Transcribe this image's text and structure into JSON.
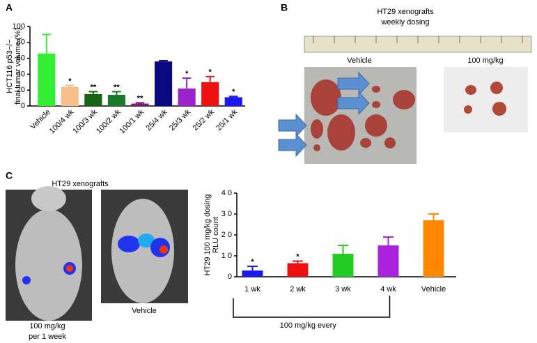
{
  "chart_data": [
    {
      "type": "bar",
      "panel": "A",
      "ylabel": [
        "HCT116 p53−/−",
        "final tumor volume (%)"
      ],
      "categories": [
        "Vehicle",
        "100/4 wk",
        "100/3 wk",
        "100/2 wk",
        "100/1 wk",
        "25/4 wk",
        "25/3 wk",
        "25/2 wk",
        "25/1 wk"
      ],
      "values": [
        66,
        24,
        15,
        14,
        3,
        56,
        22,
        30,
        11
      ],
      "errors": [
        24,
        2,
        3,
        4,
        1,
        1,
        13,
        7,
        1
      ],
      "colors": [
        "#33ee33",
        "#f4bf88",
        "#146414",
        "#1a7a2a",
        "#7a1a7a",
        "#0a0a80",
        "#9a22c8",
        "#ee1111",
        "#1a1aee"
      ],
      "significance": [
        null,
        "*",
        "**",
        "**",
        "**",
        null,
        "*",
        "*",
        "*"
      ],
      "ylim": [
        0,
        100
      ],
      "yticks": [
        0,
        20,
        40,
        60,
        80,
        100
      ]
    },
    {
      "type": "bar",
      "panel": "C",
      "ylabel": [
        "HT29 100 mg/kg dosing",
        "RLU count"
      ],
      "categories": [
        "1 wk",
        "2 wk",
        "3 wk",
        "4 wk",
        "Vehicle"
      ],
      "values": [
        3,
        6.5,
        11,
        15,
        27
      ],
      "errors": [
        2,
        1,
        4,
        4,
        3
      ],
      "colors": [
        "#1a1aee",
        "#ee1111",
        "#22cc22",
        "#aa22dd",
        "#ff8800"
      ],
      "significance": [
        "*",
        "*",
        null,
        null,
        null
      ],
      "bracket_label": "100 mg/kg every",
      "ylim": [
        0,
        40
      ],
      "yticks": [
        0,
        {
          "value": 10,
          "label": "1 0"
        },
        {
          "value": 20,
          "label": "2 0"
        },
        {
          "value": 30,
          "label": "3 0"
        },
        {
          "value": 40,
          "label": "4 0"
        }
      ]
    }
  ],
  "panel_b": {
    "label": "B",
    "title": [
      "HT29 xenografts",
      "weekly dosing"
    ],
    "left": "Vehicle",
    "right": "100 mg/kg"
  },
  "panel_c_images": {
    "title": "HT29 xenografts",
    "left": [
      "100 mg/kg",
      "per 1 week"
    ],
    "right": "Vehicle"
  }
}
